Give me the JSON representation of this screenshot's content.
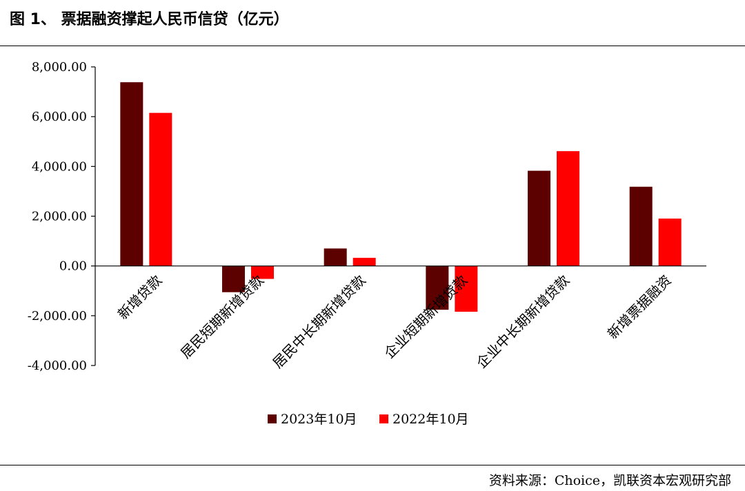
{
  "header": {
    "title": "图 1、 票据融资撑起人民币信贷（亿元）"
  },
  "footer": {
    "source": "资料来源：Choice，凯联资本宏观研究部"
  },
  "chart_data": {
    "type": "bar",
    "title": "票据融资撑起人民币信贷（亿元）",
    "categories": [
      "新增贷款",
      "居民短期新增贷款",
      "居民中长期新增贷款",
      "企业短期新增贷款",
      "企业中长期新增贷款",
      "新增票据融资"
    ],
    "series": [
      {
        "name": "2023年10月",
        "color": "#5c0000",
        "values": [
          7384,
          -1054,
          702,
          -1760,
          3826,
          3184
        ]
      },
      {
        "name": "2022年10月",
        "color": "#ff0000",
        "values": [
          6152,
          -520,
          327,
          -1840,
          4614,
          1905
        ]
      }
    ],
    "ylim": [
      -4000,
      8000
    ],
    "yticks": [
      8000,
      6000,
      4000,
      2000,
      0,
      -2000,
      -4000
    ],
    "ytick_labels": [
      "8,000.00",
      "6,000.00",
      "4,000.00",
      "2,000.00",
      "0.00",
      "-2,000.00",
      "-4,000.00"
    ],
    "legend_position": "bottom",
    "grid": false
  }
}
